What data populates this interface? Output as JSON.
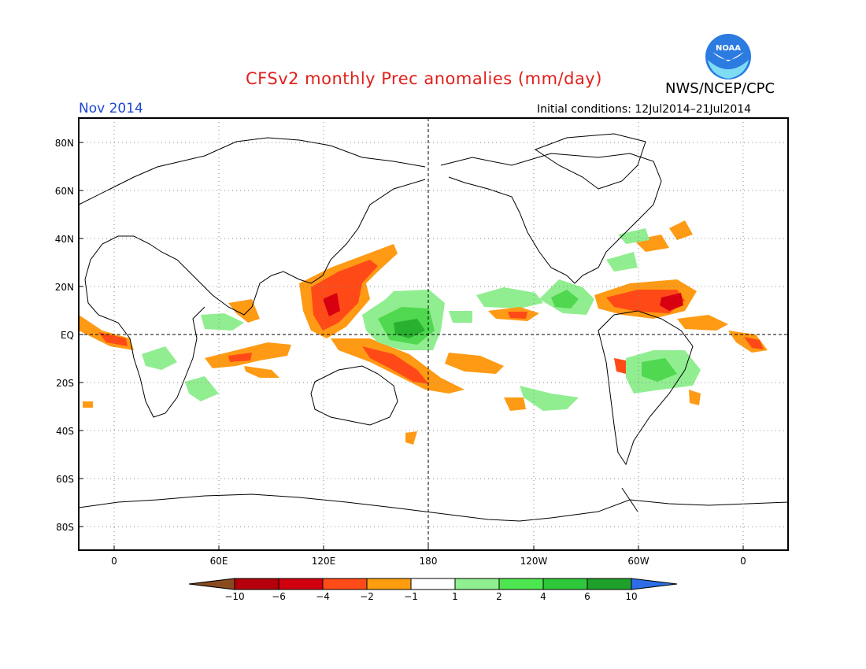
{
  "header": {
    "title": "CFSv2 monthly Prec anomalies (mm/day)",
    "date": "Nov 2014",
    "initial_conditions": "Initial conditions: 12Jul2014–21Jul2014",
    "agency": "NWS/NCEP/CPC",
    "logo_text": "NOAA"
  },
  "map": {
    "lat_labels": [
      "80N",
      "60N",
      "40N",
      "20N",
      "EQ",
      "20S",
      "40S",
      "60S",
      "80S"
    ],
    "lon_labels": [
      "0",
      "60E",
      "120E",
      "180",
      "120W",
      "60W",
      "0"
    ]
  },
  "legend": {
    "labels": [
      "−10",
      "−6",
      "−4",
      "−2",
      "−1",
      "1",
      "2",
      "4",
      "6",
      "10"
    ],
    "colors": [
      "#8a4a20",
      "#b4000a",
      "#d0000f",
      "#ff4b18",
      "#ff9d10",
      "#ffffff",
      "#8ef08e",
      "#4ee650",
      "#2ec83a",
      "#1ea02a",
      "#2d6ee6"
    ]
  },
  "colors": {
    "dry_light": "#ff9a14",
    "dry_mid": "#ff4a18",
    "dry_strong": "#d80010",
    "wet_light": "#90ee90",
    "wet_mid": "#50d850",
    "wet_strong": "#28b030"
  }
}
